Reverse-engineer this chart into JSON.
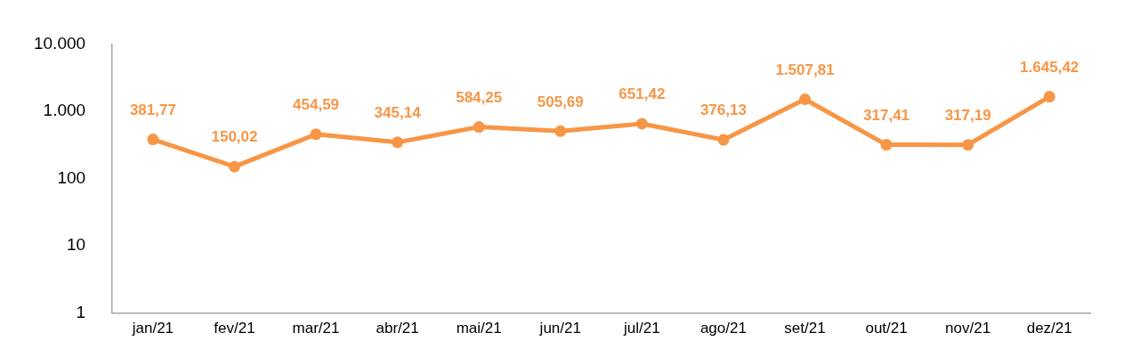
{
  "chart_data": {
    "type": "line",
    "categories": [
      "jan/21",
      "fev/21",
      "mar/21",
      "abr/21",
      "mai/21",
      "jun/21",
      "jul/21",
      "ago/21",
      "set/21",
      "out/21",
      "nov/21",
      "dez/21"
    ],
    "series": [
      {
        "color": "#f79646",
        "values": [
          381.77,
          150.02,
          454.59,
          345.14,
          584.25,
          505.69,
          651.42,
          376.13,
          1507.81,
          317.41,
          317.19,
          1645.42
        ],
        "value_labels": [
          "381,77",
          "150,02",
          "454,59",
          "345,14",
          "584,25",
          "505,69",
          "651,42",
          "376,13",
          "1.507,81",
          "317,41",
          "317,19",
          "1.645,42"
        ]
      }
    ],
    "log": "y",
    "ylim": [
      1,
      10000
    ],
    "yticks": [
      1,
      10,
      100,
      {
        "value": 1000,
        "label": "1.000"
      },
      {
        "value": 10000,
        "label": "10.000"
      }
    ],
    "grid": false,
    "legend": false,
    "marker": "circle",
    "line_style": "solid"
  }
}
